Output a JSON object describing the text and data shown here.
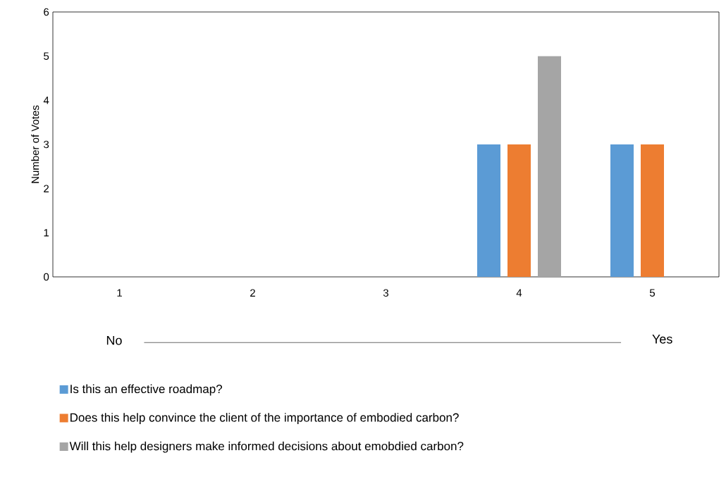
{
  "chart_data": {
    "type": "bar",
    "ylabel": "Number of Votes",
    "categories": [
      "1",
      "2",
      "3",
      "4",
      "5"
    ],
    "series": [
      {
        "name": "Is this an effective roadmap?",
        "color": "#5b9bd5",
        "values": [
          0,
          0,
          0,
          3,
          3
        ]
      },
      {
        "name": "Does this help convince the client of the importance of embodied carbon?",
        "color": "#ed7d31",
        "values": [
          0,
          0,
          0,
          3,
          3
        ]
      },
      {
        "name": "Will this help designers make informed decisions about emobdied carbon?",
        "color": "#a5a5a5",
        "values": [
          0,
          0,
          0,
          5,
          0
        ]
      }
    ],
    "ylim": [
      0,
      6
    ],
    "yticks": [
      0,
      1,
      2,
      3,
      4,
      5,
      6
    ],
    "annotations": [
      "No",
      "Yes"
    ],
    "grid": false,
    "legend": "bottom"
  }
}
